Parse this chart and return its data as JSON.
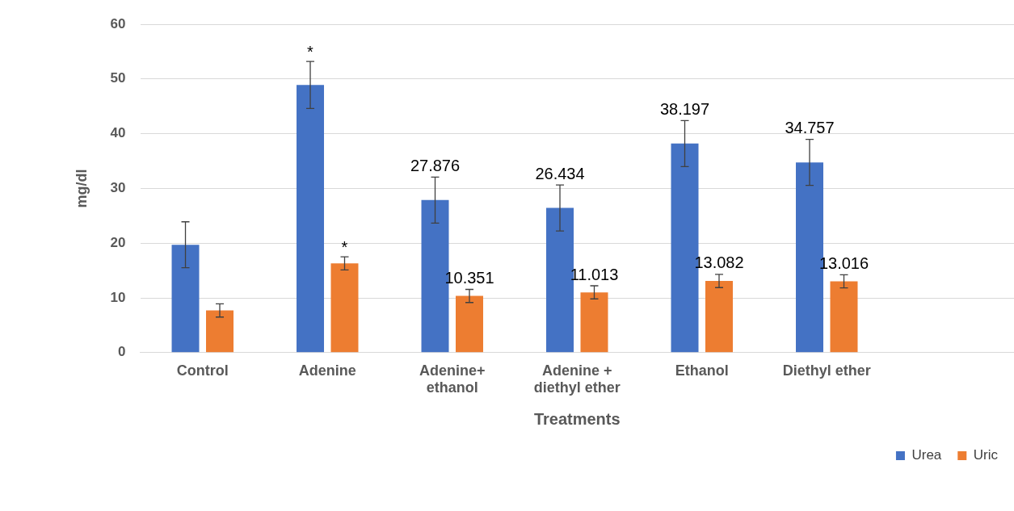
{
  "chart_data": {
    "type": "bar",
    "xlabel": "Treatments",
    "ylabel": "mg/dl",
    "categories": [
      "Control",
      "Adenine",
      "Adenine+ ethanol",
      "Adenine + diethyl ether",
      "Ethanol",
      "Diethyl ether",
      null
    ],
    "series": [
      {
        "name": "Urea",
        "color": "#4472c4",
        "values": [
          19.7,
          48.9,
          27.876,
          26.434,
          38.197,
          34.757,
          null
        ],
        "errors": [
          4.2,
          4.3,
          4.2,
          4.2,
          4.2,
          4.2,
          null
        ],
        "value_labels": [
          null,
          null,
          "27.876",
          "26.434",
          "38.197",
          "34.757",
          null
        ]
      },
      {
        "name": "Uric",
        "color": "#ed7d31",
        "values": [
          7.7,
          16.3,
          10.351,
          11.013,
          13.082,
          13.016,
          null
        ],
        "errors": [
          1.2,
          1.2,
          1.2,
          1.2,
          1.2,
          1.2,
          null
        ],
        "value_labels": [
          null,
          null,
          "10.351",
          "11.013",
          "13.082",
          "13.016",
          null
        ]
      }
    ],
    "annotations": [
      {
        "text": "*",
        "x": "Adenine",
        "y": 48.9
      },
      {
        "text": "*",
        "x": "Adenine",
        "y": 16.3
      }
    ],
    "ylim": [
      0,
      60
    ],
    "yticks": [
      0,
      10,
      20,
      30,
      40,
      50,
      60
    ],
    "grid": "y",
    "legend": "bottom right"
  }
}
